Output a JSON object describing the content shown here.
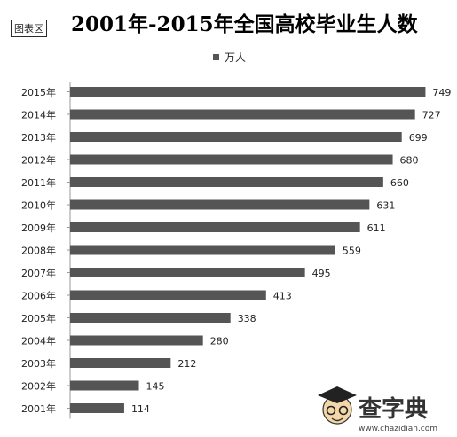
{
  "chart_tag": "图表区",
  "chart_data": {
    "type": "bar",
    "orientation": "horizontal",
    "title": "2001年-2015年全国高校毕业生人数",
    "categories": [
      "2015年",
      "2014年",
      "2013年",
      "2012年",
      "2011年",
      "2010年",
      "2009年",
      "2008年",
      "2007年",
      "2006年",
      "2005年",
      "2004年",
      "2003年",
      "2002年",
      "2001年"
    ],
    "series": [
      {
        "name": "万人",
        "values": [
          749,
          727,
          699,
          680,
          660,
          631,
          611,
          559,
          495,
          413,
          338,
          280,
          212,
          145,
          114
        ]
      }
    ],
    "data_labels": true,
    "legend_position": "top",
    "grid": false,
    "xlim": [
      0,
      780
    ],
    "bar_color": "#555555"
  },
  "watermark": {
    "brand": "查字典",
    "site": "www.chazidian.com"
  }
}
